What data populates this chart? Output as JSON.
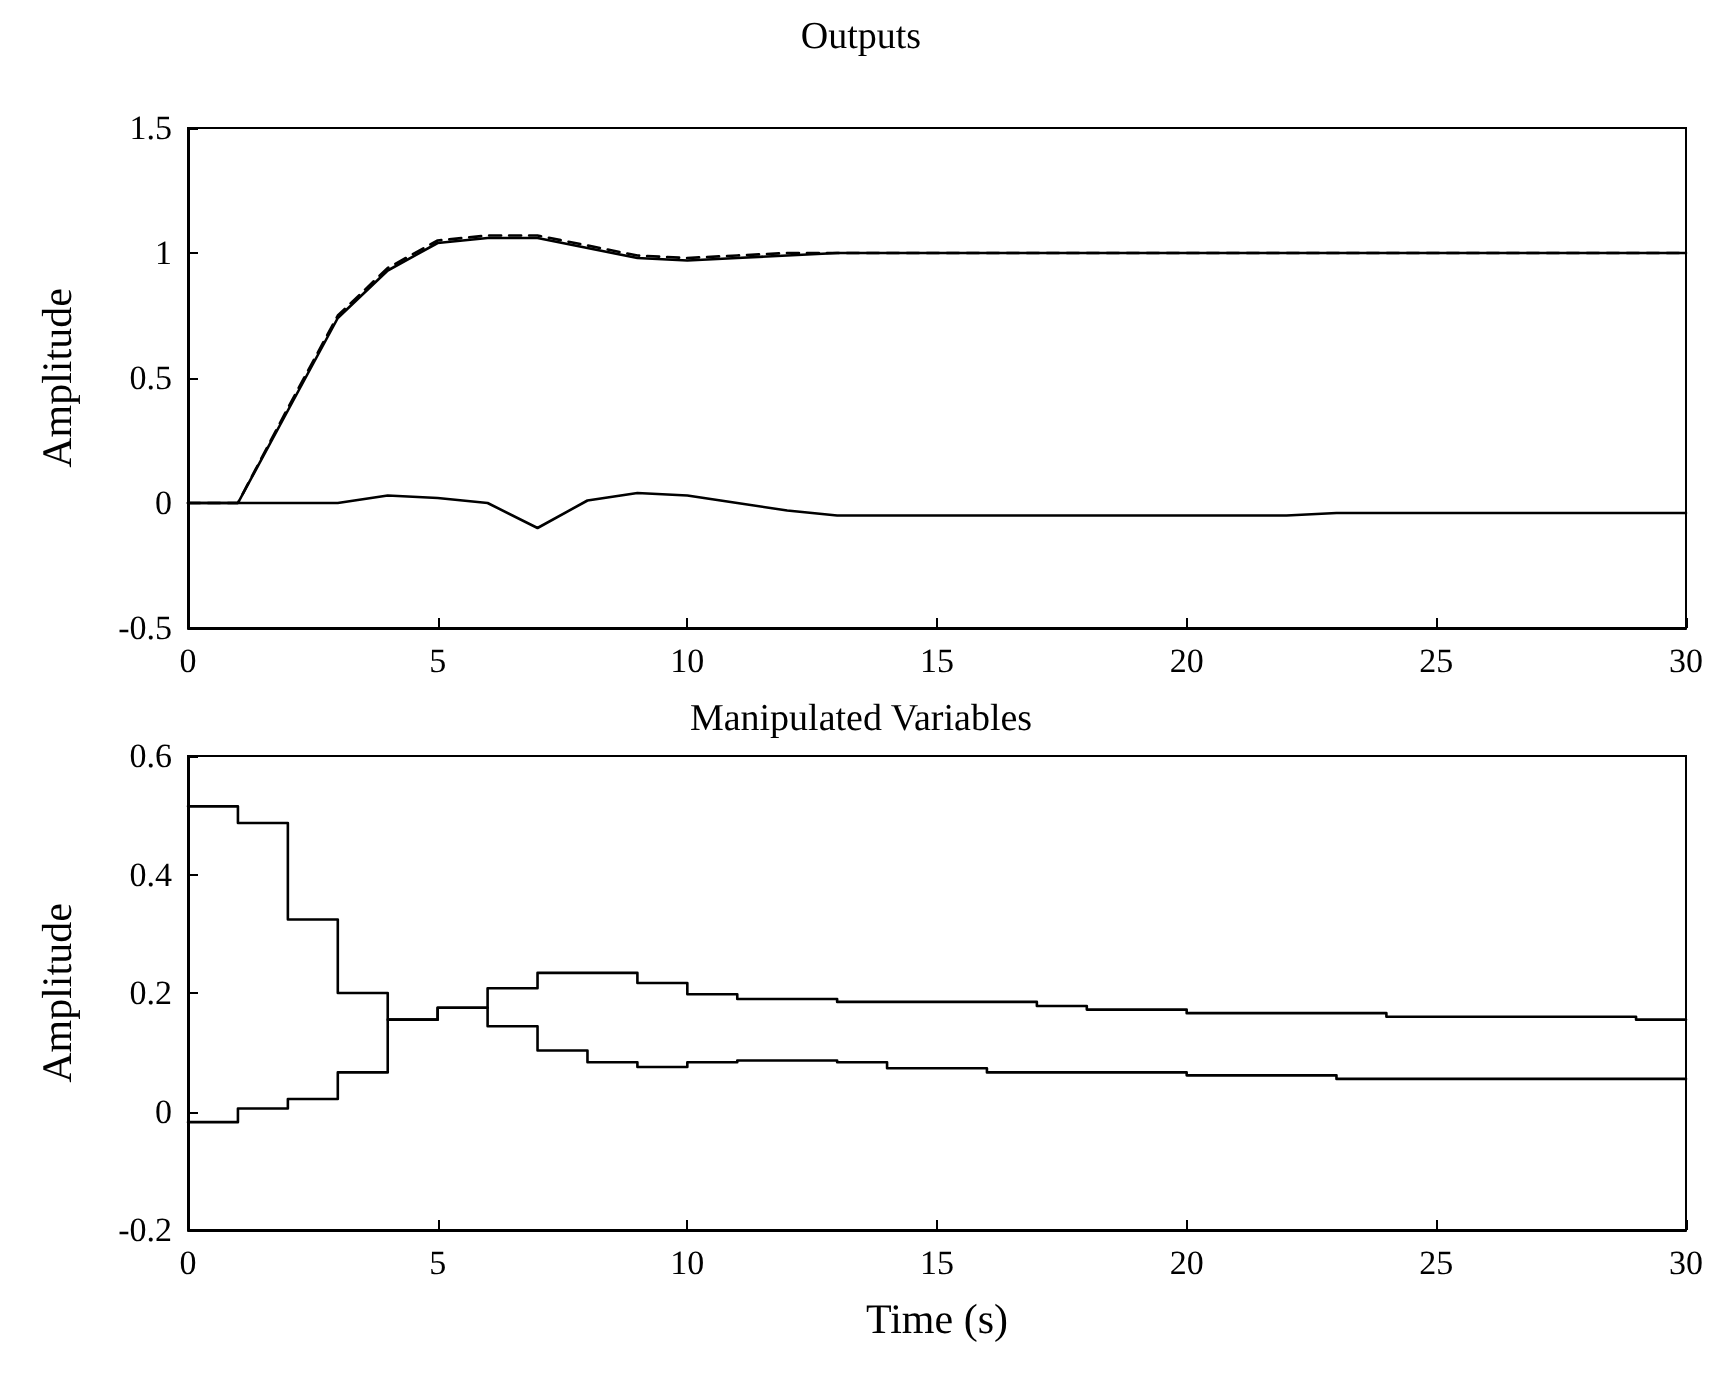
{
  "chart_data": [
    {
      "type": "line",
      "title": "Outputs",
      "ylabel": "Amplitude",
      "x": [
        0,
        1,
        2,
        3,
        4,
        5,
        6,
        7,
        8,
        9,
        10,
        11,
        12,
        13,
        14,
        15,
        16,
        17,
        18,
        19,
        20,
        21,
        22,
        23,
        24,
        25,
        26,
        27,
        28,
        29,
        30
      ],
      "series": [
        {
          "color": "#000000",
          "line_style": "solid",
          "values": [
            0,
            0,
            0.37,
            0.74,
            0.93,
            1.04,
            1.06,
            1.06,
            1.02,
            0.98,
            0.97,
            0.98,
            0.99,
            1,
            1,
            1,
            1,
            1,
            1,
            1,
            1,
            1,
            1,
            1,
            1,
            1,
            1,
            1,
            1,
            1,
            1
          ]
        },
        {
          "color": "#000000",
          "line_style": "dashed",
          "values": [
            0,
            0,
            0.38,
            0.75,
            0.94,
            1.05,
            1.07,
            1.07,
            1.03,
            0.99,
            0.98,
            0.99,
            1,
            1,
            1,
            1,
            1,
            1,
            1,
            1,
            1,
            1,
            1,
            1,
            1,
            1,
            1,
            1,
            1,
            1,
            1
          ]
        },
        {
          "color": "#000000",
          "line_style": "solid",
          "values": [
            0,
            0,
            0,
            0,
            0.03,
            0.02,
            0,
            -0.1,
            0.01,
            0.04,
            0.03,
            0,
            -0.03,
            -0.05,
            -0.05,
            -0.05,
            -0.05,
            -0.05,
            -0.05,
            -0.05,
            -0.05,
            -0.05,
            -0.05,
            -0.04,
            -0.04,
            -0.04,
            -0.04,
            -0.04,
            -0.04,
            -0.04,
            -0.04
          ]
        }
      ],
      "xlim": [
        0,
        30
      ],
      "xticks": [
        0,
        5,
        10,
        15,
        20,
        25,
        30
      ],
      "ylim": [
        -0.5,
        1.5
      ],
      "yticks": [
        -0.5,
        0,
        0.5,
        1,
        1.5
      ],
      "grid": false,
      "marker": "none"
    },
    {
      "type": "step",
      "title": "Manipulated Variables",
      "xlabel": "Time (s)",
      "ylabel": "Amplitude",
      "x": [
        0,
        1,
        2,
        3,
        4,
        5,
        6,
        7,
        8,
        9,
        10,
        11,
        12,
        13,
        14,
        15,
        16,
        17,
        18,
        19,
        20,
        21,
        22,
        23,
        24,
        25,
        26,
        27,
        28,
        29,
        30
      ],
      "series": [
        {
          "color": "#000000",
          "line_style": "solid",
          "values": [
            0.515,
            0.487,
            0.324,
            0.2,
            0.155,
            0.175,
            0.208,
            0.234,
            0.234,
            0.217,
            0.198,
            0.19,
            0.19,
            0.185,
            0.185,
            0.185,
            0.185,
            0.178,
            0.172,
            0.172,
            0.166,
            0.166,
            0.166,
            0.166,
            0.16,
            0.16,
            0.16,
            0.16,
            0.16,
            0.155,
            0.155
          ]
        },
        {
          "color": "#000000",
          "line_style": "solid",
          "values": [
            -0.018,
            0.005,
            0.021,
            0.066,
            0.155,
            0.175,
            0.144,
            0.103,
            0.083,
            0.075,
            0.083,
            0.086,
            0.086,
            0.083,
            0.073,
            0.073,
            0.066,
            0.066,
            0.066,
            0.066,
            0.061,
            0.061,
            0.061,
            0.055,
            0.055,
            0.055,
            0.055,
            0.055,
            0.055,
            0.055,
            0.055
          ]
        }
      ],
      "xlim": [
        0,
        30
      ],
      "xticks": [
        0,
        5,
        10,
        15,
        20,
        25,
        30
      ],
      "ylim": [
        -0.2,
        0.6
      ],
      "yticks": [
        -0.2,
        0,
        0.2,
        0.4,
        0.6
      ],
      "grid": false,
      "marker": "none"
    }
  ]
}
